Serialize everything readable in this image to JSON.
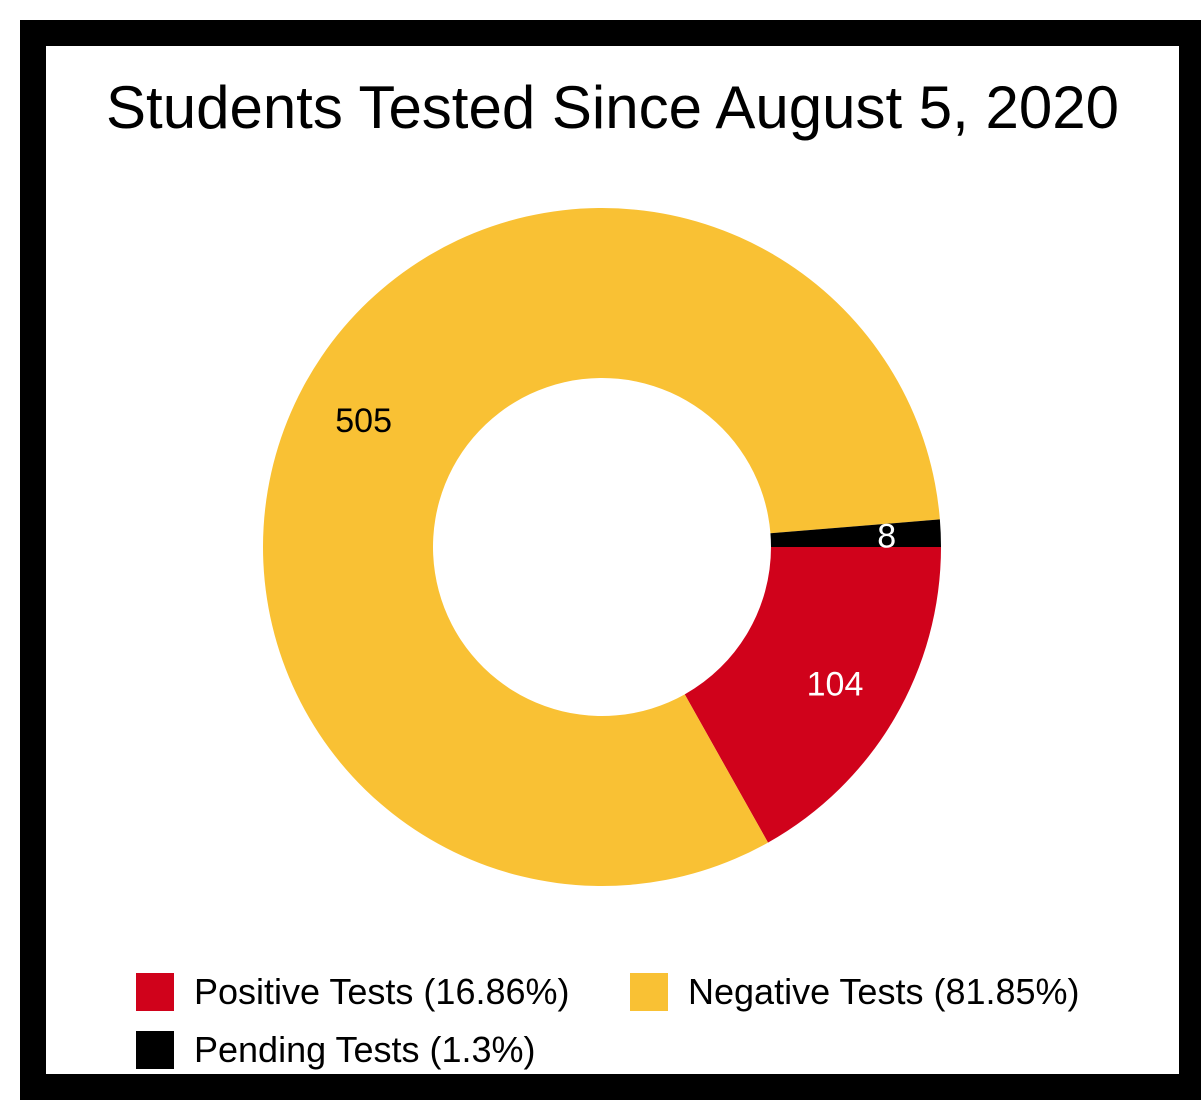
{
  "chart_data": {
    "type": "pie",
    "title": "Students Tested Since August 5, 2020",
    "categories": [
      "Positive Tests",
      "Negative Tests",
      "Pending Tests"
    ],
    "values": [
      104,
      505,
      8
    ],
    "data_labels": [
      "104",
      "505",
      "8"
    ],
    "colors": [
      "#d0021b",
      "#f9c134",
      "#000000"
    ],
    "label_colors": [
      "#ffffff",
      "#000000",
      "#ffffff"
    ],
    "legend": {
      "placement": "bottom",
      "entries": [
        "Positive Tests (16.86%)",
        "Negative Tests (81.85%)",
        "Pending Tests (1.3%)"
      ]
    },
    "donut": true
  }
}
